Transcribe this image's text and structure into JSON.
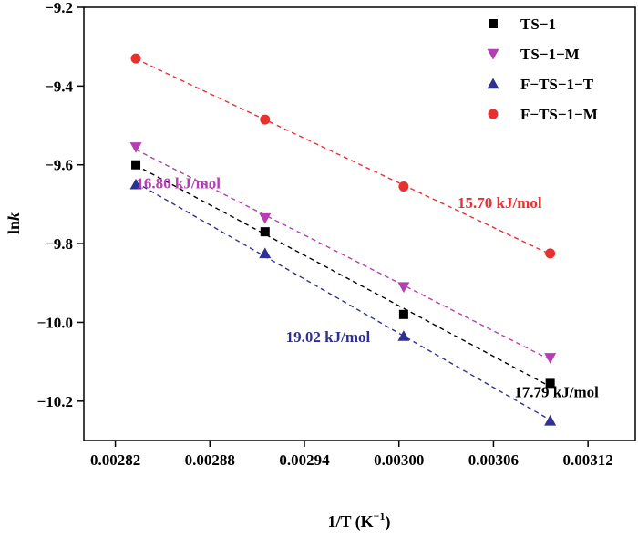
{
  "chart_data": {
    "type": "scatter",
    "xlabel_main": "1/T (K",
    "xlabel_sup": "−1",
    "xlabel_close": ")",
    "ylabel_main": "ln",
    "ylabel_italic": "k",
    "xlim": [
      0.0028,
      0.00315
    ],
    "ylim": [
      -10.3,
      -9.2
    ],
    "x_ticks": [
      {
        "value": 0.00282,
        "label": "0.00282"
      },
      {
        "value": 0.00288,
        "label": "0.00288"
      },
      {
        "value": 0.00294,
        "label": "0.00294"
      },
      {
        "value": 0.003,
        "label": "0.00300"
      },
      {
        "value": 0.00306,
        "label": "0.00306"
      },
      {
        "value": 0.00312,
        "label": "0.00312"
      }
    ],
    "y_ticks": [
      {
        "value": -9.2,
        "label": "−9.2"
      },
      {
        "value": -9.4,
        "label": "−9.4"
      },
      {
        "value": -9.6,
        "label": "−9.6"
      },
      {
        "value": -9.8,
        "label": "−9.8"
      },
      {
        "value": -10.0,
        "label": "−10.0"
      },
      {
        "value": -10.2,
        "label": "−10.2"
      }
    ],
    "grid": false,
    "legend_position": "top-right",
    "fit_lines": "dashed linear fits",
    "series": [
      {
        "name": "TS−1",
        "marker": "square",
        "color": "#000000",
        "x": [
          0.002833,
          0.002915,
          0.003003,
          0.003096
        ],
        "y": [
          -9.6,
          -9.77,
          -9.98,
          -10.155
        ],
        "activation_energy": "17.79 kJ/mol",
        "annotation_color": "#000000"
      },
      {
        "name": "TS−1−M",
        "marker": "triangle-down",
        "color": "#B33FB3",
        "x": [
          0.002833,
          0.002915,
          0.003003,
          0.003096
        ],
        "y": [
          -9.555,
          -9.735,
          -9.91,
          -10.09
        ],
        "activation_energy": "16.80 kJ/mol",
        "annotation_color": "#B33FB3"
      },
      {
        "name": "F−TS−1−T",
        "marker": "triangle-up",
        "color": "#2E3192",
        "x": [
          0.002833,
          0.002915,
          0.003003,
          0.003096
        ],
        "y": [
          -9.65,
          -9.825,
          -10.035,
          -10.25
        ],
        "activation_energy": "19.02 kJ/mol",
        "annotation_color": "#2E3192"
      },
      {
        "name": "F−TS−1−M",
        "marker": "circle",
        "color": "#E8312F",
        "x": [
          0.002833,
          0.002915,
          0.003003,
          0.003096
        ],
        "y": [
          -9.33,
          -9.485,
          -9.655,
          -9.825
        ],
        "activation_energy": "15.70 kJ/mol",
        "annotation_color": "#E8312F"
      }
    ]
  }
}
